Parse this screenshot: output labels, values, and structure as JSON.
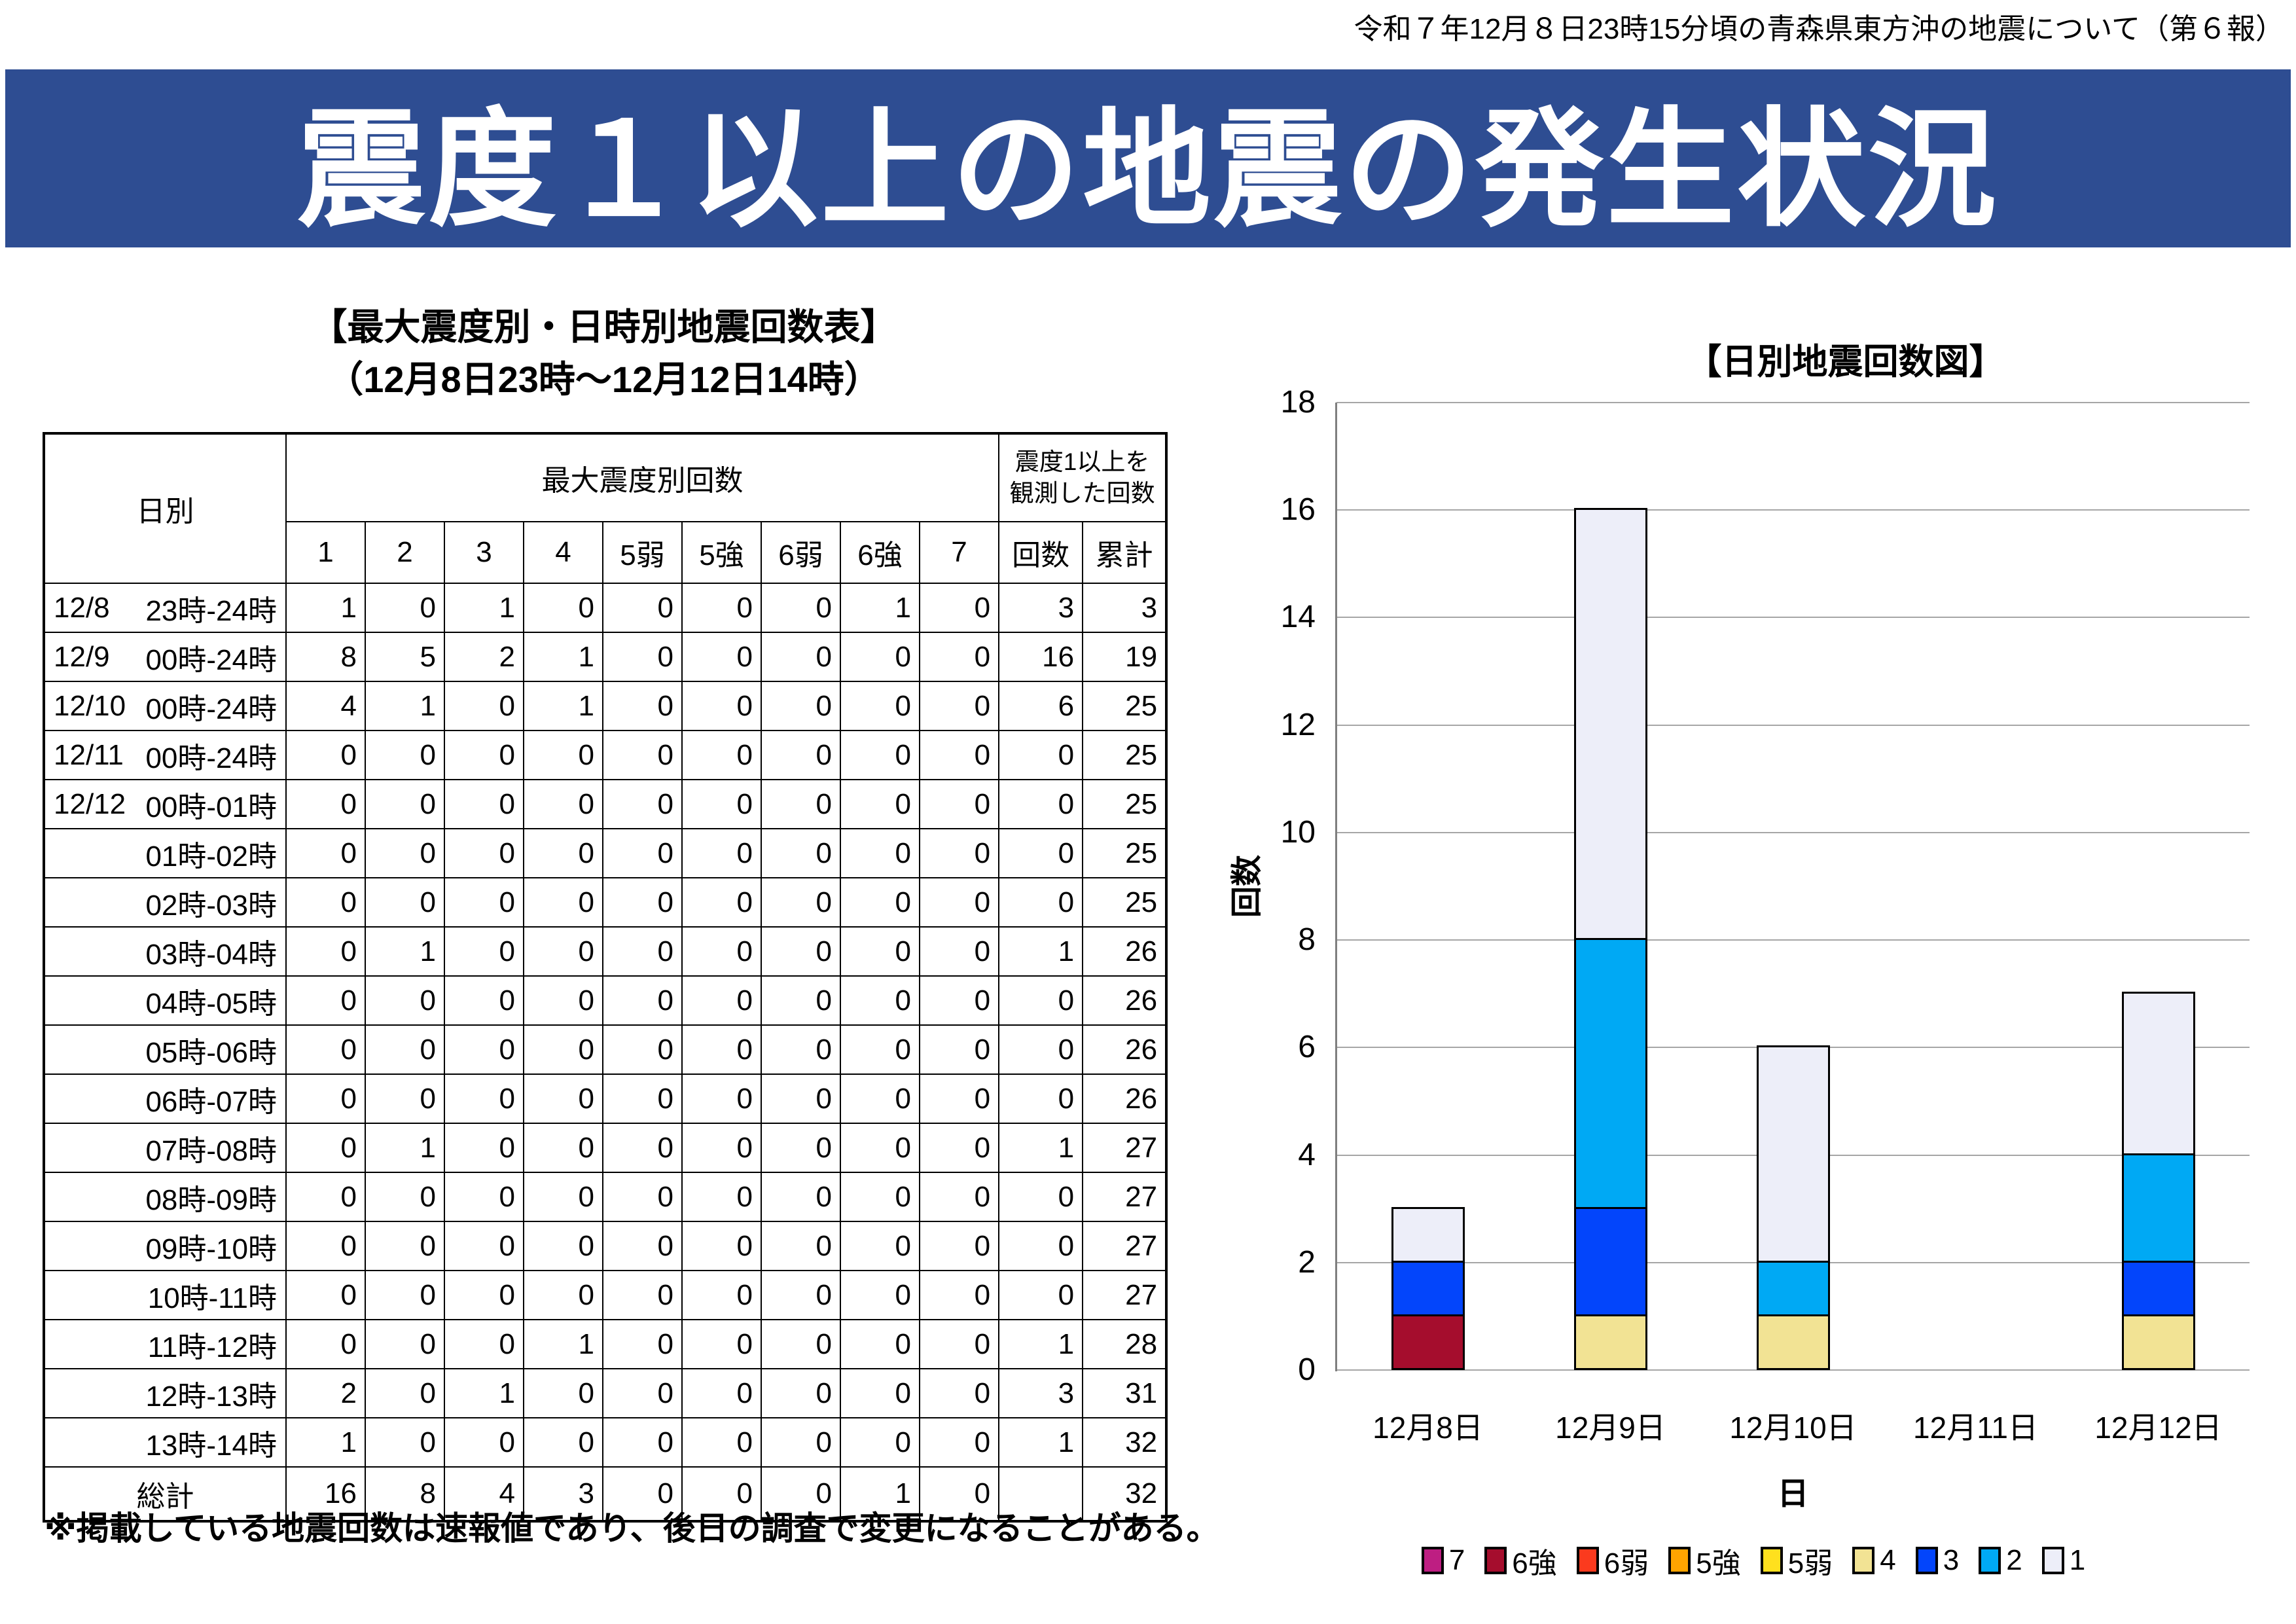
{
  "page": {
    "header_note": "令和７年12月８日23時15分頃の青森県東方沖の地震について（第６報）",
    "banner_title": "震度１以上の地震の発生状況",
    "footnote": "※掲載している地震回数は速報値であり、後日の調査で変更になることがある。"
  },
  "table": {
    "title_line1": "【最大震度別・日時別地震回数表】",
    "title_line2": "（12月8日23時～12月12日14時）",
    "header": {
      "col_day": "日別",
      "group_by_intensity": "最大震度別回数",
      "observed_line1": "震度1以上を",
      "observed_line2": "観測した回数",
      "intensity_cols": [
        "1",
        "2",
        "3",
        "4",
        "5弱",
        "5強",
        "6弱",
        "6強",
        "7"
      ],
      "count_col": "回数",
      "cumulative_col": "累計"
    },
    "rows": [
      {
        "date": "12/8",
        "time": "23時-24時",
        "counts": [
          "1",
          "0",
          "1",
          "0",
          "0",
          "0",
          "0",
          "1",
          "0"
        ],
        "count": "3",
        "cumulative": "3"
      },
      {
        "date": "12/9",
        "time": "00時-24時",
        "counts": [
          "8",
          "5",
          "2",
          "1",
          "0",
          "0",
          "0",
          "0",
          "0"
        ],
        "count": "16",
        "cumulative": "19"
      },
      {
        "date": "12/10",
        "time": "00時-24時",
        "counts": [
          "4",
          "1",
          "0",
          "1",
          "0",
          "0",
          "0",
          "0",
          "0"
        ],
        "count": "6",
        "cumulative": "25"
      },
      {
        "date": "12/11",
        "time": "00時-24時",
        "counts": [
          "0",
          "0",
          "0",
          "0",
          "0",
          "0",
          "0",
          "0",
          "0"
        ],
        "count": "0",
        "cumulative": "25"
      },
      {
        "date": "12/12",
        "time": "00時-01時",
        "counts": [
          "0",
          "0",
          "0",
          "0",
          "0",
          "0",
          "0",
          "0",
          "0"
        ],
        "count": "0",
        "cumulative": "25"
      },
      {
        "date": "",
        "time": "01時-02時",
        "counts": [
          "0",
          "0",
          "0",
          "0",
          "0",
          "0",
          "0",
          "0",
          "0"
        ],
        "count": "0",
        "cumulative": "25"
      },
      {
        "date": "",
        "time": "02時-03時",
        "counts": [
          "0",
          "0",
          "0",
          "0",
          "0",
          "0",
          "0",
          "0",
          "0"
        ],
        "count": "0",
        "cumulative": "25"
      },
      {
        "date": "",
        "time": "03時-04時",
        "counts": [
          "0",
          "1",
          "0",
          "0",
          "0",
          "0",
          "0",
          "0",
          "0"
        ],
        "count": "1",
        "cumulative": "26"
      },
      {
        "date": "",
        "time": "04時-05時",
        "counts": [
          "0",
          "0",
          "0",
          "0",
          "0",
          "0",
          "0",
          "0",
          "0"
        ],
        "count": "0",
        "cumulative": "26"
      },
      {
        "date": "",
        "time": "05時-06時",
        "counts": [
          "0",
          "0",
          "0",
          "0",
          "0",
          "0",
          "0",
          "0",
          "0"
        ],
        "count": "0",
        "cumulative": "26"
      },
      {
        "date": "",
        "time": "06時-07時",
        "counts": [
          "0",
          "0",
          "0",
          "0",
          "0",
          "0",
          "0",
          "0",
          "0"
        ],
        "count": "0",
        "cumulative": "26"
      },
      {
        "date": "",
        "time": "07時-08時",
        "counts": [
          "0",
          "1",
          "0",
          "0",
          "0",
          "0",
          "0",
          "0",
          "0"
        ],
        "count": "1",
        "cumulative": "27"
      },
      {
        "date": "",
        "time": "08時-09時",
        "counts": [
          "0",
          "0",
          "0",
          "0",
          "0",
          "0",
          "0",
          "0",
          "0"
        ],
        "count": "0",
        "cumulative": "27"
      },
      {
        "date": "",
        "time": "09時-10時",
        "counts": [
          "0",
          "0",
          "0",
          "0",
          "0",
          "0",
          "0",
          "0",
          "0"
        ],
        "count": "0",
        "cumulative": "27"
      },
      {
        "date": "",
        "time": "10時-11時",
        "counts": [
          "0",
          "0",
          "0",
          "0",
          "0",
          "0",
          "0",
          "0",
          "0"
        ],
        "count": "0",
        "cumulative": "27"
      },
      {
        "date": "",
        "time": "11時-12時",
        "counts": [
          "0",
          "0",
          "0",
          "1",
          "0",
          "0",
          "0",
          "0",
          "0"
        ],
        "count": "1",
        "cumulative": "28"
      },
      {
        "date": "",
        "time": "12時-13時",
        "counts": [
          "2",
          "0",
          "1",
          "0",
          "0",
          "0",
          "0",
          "0",
          "0"
        ],
        "count": "3",
        "cumulative": "31"
      },
      {
        "date": "",
        "time": "13時-14時",
        "counts": [
          "1",
          "0",
          "0",
          "0",
          "0",
          "0",
          "0",
          "0",
          "0"
        ],
        "count": "1",
        "cumulative": "32"
      }
    ],
    "total_row": {
      "label": "総計",
      "counts": [
        "16",
        "8",
        "4",
        "3",
        "0",
        "0",
        "0",
        "1",
        "0"
      ],
      "count": "",
      "cumulative": "32"
    }
  },
  "chart_data": {
    "type": "bar",
    "stacked": true,
    "title": "【日別地震回数図】",
    "xlabel": "日",
    "ylabel": "回数",
    "categories": [
      "12月8日",
      "12月9日",
      "12月10日",
      "12月11日",
      "12月12日"
    ],
    "series": [
      {
        "name": "7",
        "color": "#BE1E82",
        "values": [
          0,
          0,
          0,
          0,
          0
        ]
      },
      {
        "name": "6強",
        "color": "#A50D2D",
        "values": [
          1,
          0,
          0,
          0,
          0
        ]
      },
      {
        "name": "6弱",
        "color": "#FB3A1E",
        "values": [
          0,
          0,
          0,
          0,
          0
        ]
      },
      {
        "name": "5強",
        "color": "#FFA400",
        "values": [
          0,
          0,
          0,
          0,
          0
        ]
      },
      {
        "name": "5弱",
        "color": "#FFE01E",
        "values": [
          0,
          0,
          0,
          0,
          0
        ]
      },
      {
        "name": "4",
        "color": "#F2E394",
        "values": [
          0,
          1,
          1,
          0,
          1
        ]
      },
      {
        "name": "3",
        "color": "#0345FB",
        "values": [
          1,
          2,
          0,
          0,
          1
        ]
      },
      {
        "name": "2",
        "color": "#00A9F4",
        "values": [
          0,
          5,
          1,
          0,
          2
        ]
      },
      {
        "name": "1",
        "color": "#EDEEF9",
        "values": [
          1,
          8,
          4,
          0,
          3
        ]
      }
    ],
    "totals": [
      3,
      16,
      6,
      0,
      7
    ],
    "ylim": [
      0,
      18
    ],
    "ytick_step": 2,
    "grid": true,
    "gridline_color": "#A6A6A6",
    "axis_color": "#7F7F7F",
    "bar_outline_color": "#000000",
    "legend_position": "bottom",
    "stack_order": "highest-intensity-at-bottom"
  },
  "colors": {
    "banner_background": "#2E4D92",
    "banner_text": "#FFFFFF",
    "table_border": "#000000"
  }
}
